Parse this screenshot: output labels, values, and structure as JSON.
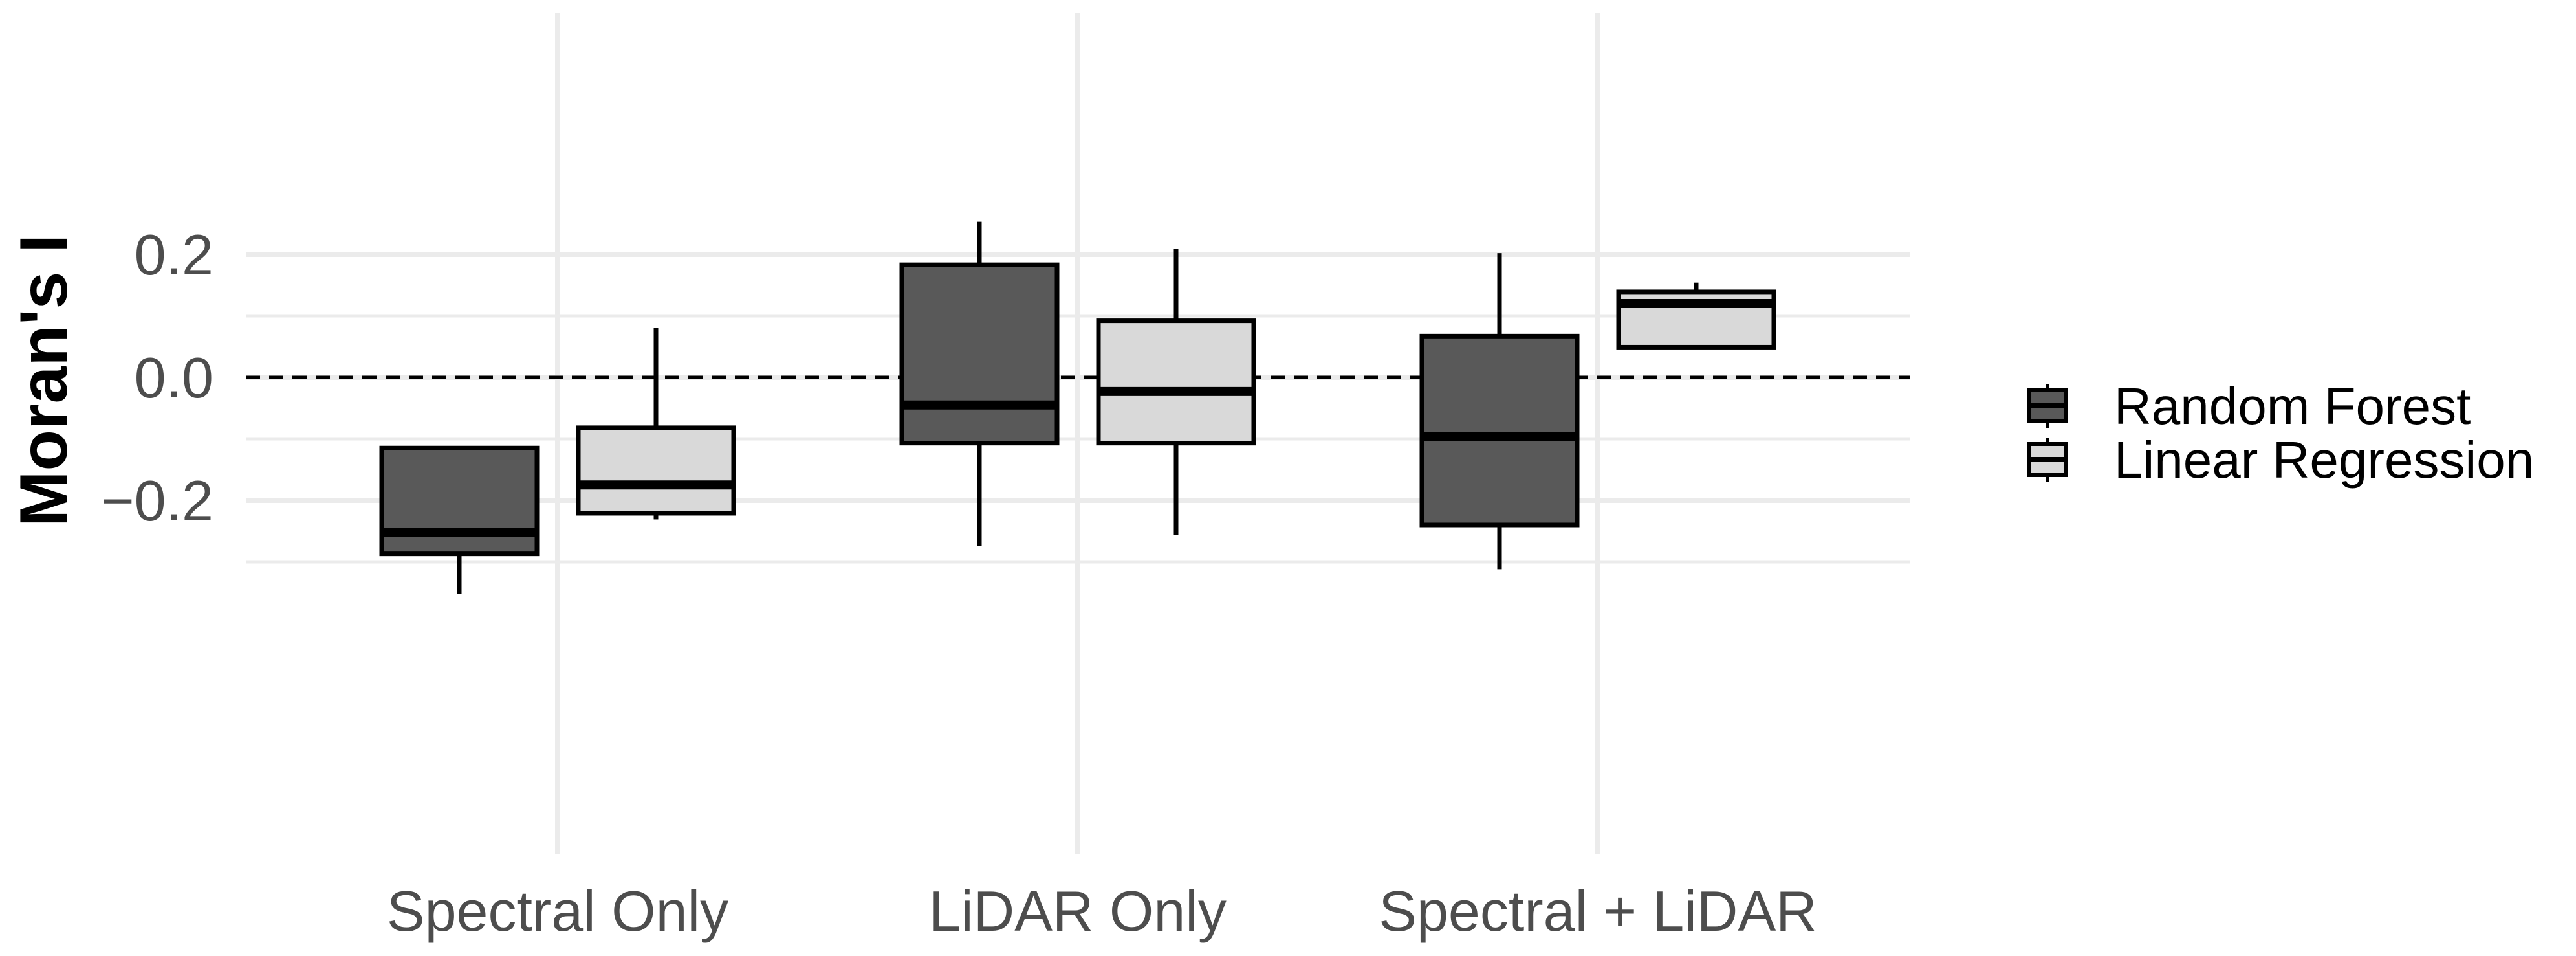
{
  "chart_data": {
    "type": "box",
    "title": "",
    "xlabel": "",
    "ylabel": "Moran's I",
    "categories": [
      "Spectral Only",
      "LiDAR Only",
      "Spectral + LiDAR"
    ],
    "ylim": [
      -0.37,
      0.29
    ],
    "yticks": [
      -0.2,
      0.0,
      0.2
    ],
    "ytick_labels": [
      "−0.2",
      "0.0",
      "0.2"
    ],
    "grid": true,
    "reference_line": {
      "y": 0.0,
      "style": "dashed"
    },
    "legend": {
      "position": "right"
    },
    "series": [
      {
        "name": "Random Forest",
        "color": "#595959",
        "boxes": [
          {
            "category": "Spectral Only",
            "whisker_low": -0.352,
            "q1": -0.287,
            "median": -0.252,
            "q3": -0.115,
            "whisker_high": -0.115
          },
          {
            "category": "LiDAR Only",
            "whisker_low": -0.274,
            "q1": -0.107,
            "median": -0.045,
            "q3": 0.183,
            "whisker_high": 0.253
          },
          {
            "category": "Spectral + LiDAR",
            "whisker_low": -0.312,
            "q1": -0.24,
            "median": -0.096,
            "q3": 0.067,
            "whisker_high": 0.202
          }
        ]
      },
      {
        "name": "Linear Regression",
        "color": "#d9d9d9",
        "boxes": [
          {
            "category": "Spectral Only",
            "whisker_low": -0.231,
            "q1": -0.221,
            "median": -0.175,
            "q3": -0.082,
            "whisker_high": 0.08
          },
          {
            "category": "LiDAR Only",
            "whisker_low": -0.256,
            "q1": -0.107,
            "median": -0.023,
            "q3": 0.092,
            "whisker_high": 0.209
          },
          {
            "category": "Spectral + LiDAR",
            "whisker_low": 0.049,
            "q1": 0.049,
            "median": 0.12,
            "q3": 0.139,
            "whisker_high": 0.154
          }
        ]
      }
    ]
  }
}
